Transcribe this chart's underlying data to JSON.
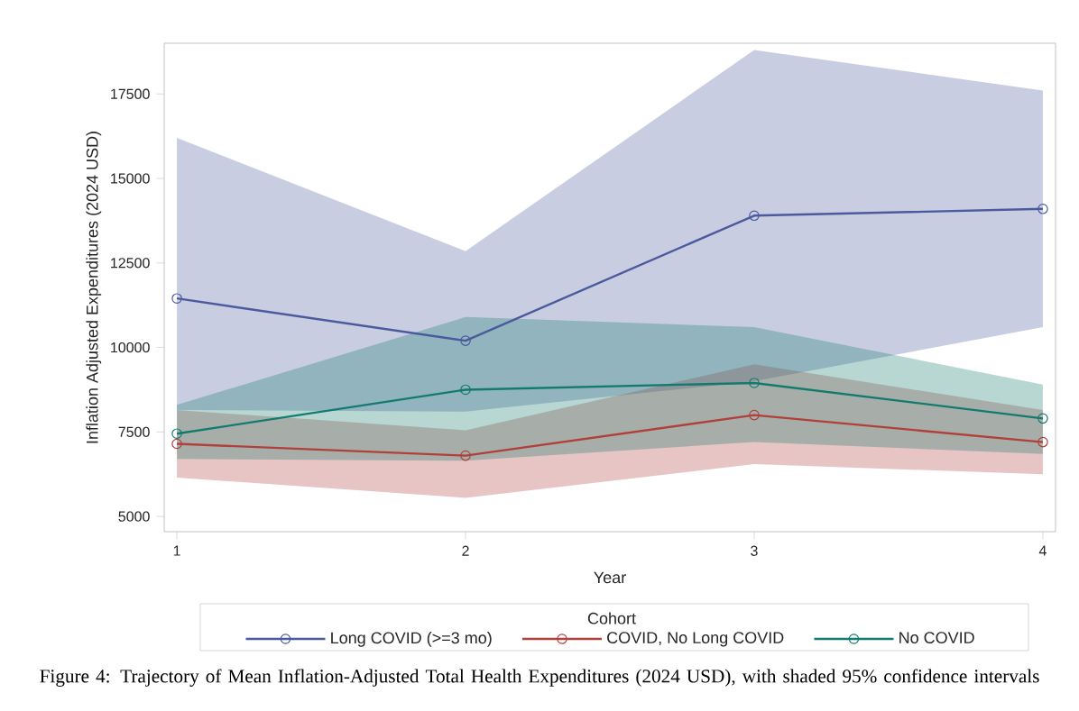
{
  "chart_data": {
    "type": "line",
    "xlabel": "Year",
    "ylabel": "Inflation Adjusted Expenditures (2024 USD)",
    "legend_title": "Cohort",
    "x": [
      1,
      2,
      3,
      4
    ],
    "series": [
      {
        "name": "Long COVID (>=3 mo)",
        "color": "#4a5a9c",
        "values": [
          11450,
          10200,
          13900,
          14100
        ],
        "lower": [
          8150,
          8100,
          9000,
          10600
        ],
        "upper": [
          16200,
          12850,
          18800,
          17600
        ]
      },
      {
        "name": "COVID, No Long COVID",
        "color": "#b0403a",
        "values": [
          7150,
          6800,
          8000,
          7200
        ],
        "lower": [
          6150,
          5550,
          6550,
          6250
        ],
        "upper": [
          8150,
          7550,
          9500,
          8150
        ]
      },
      {
        "name": "No COVID",
        "color": "#137a6e",
        "values": [
          7450,
          8750,
          8950,
          7900
        ],
        "lower": [
          6700,
          6650,
          7200,
          6850
        ],
        "upper": [
          8300,
          10900,
          10600,
          8900
        ]
      }
    ],
    "xlim": [
      0.956,
      4.044
    ],
    "ylim": [
      4550,
      19000
    ],
    "xticks": [
      1,
      2,
      3,
      4
    ],
    "yticks": [
      5000,
      7500,
      10000,
      12500,
      15000,
      17500
    ],
    "marker": "circle",
    "line_style": "solid",
    "grid": false,
    "legend": "bottom",
    "annotations": [
      "Figure 4: Trajectory of Mean Inflation-Adjusted Total Health Expenditures (2024 USD), with shaded 95% confidence intervals"
    ]
  }
}
